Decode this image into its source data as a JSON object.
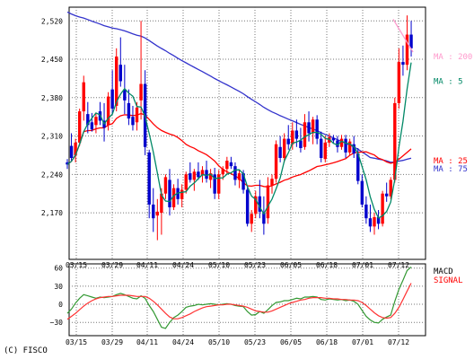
{
  "chart_data": [
    {
      "type": "candlestick",
      "x_ticks": [
        "03/15",
        "03/29",
        "04/11",
        "04/24",
        "05/10",
        "05/23",
        "06/05",
        "06/18",
        "07/01",
        "07/12"
      ],
      "y_ticks": [
        2170,
        2240,
        2310,
        2380,
        2450,
        2520
      ],
      "y_tick_labels": [
        "2,170",
        "2,240",
        "2,310",
        "2,380",
        "2,450",
        "2,520"
      ],
      "ylim": [
        2085,
        2545
      ],
      "grid": true,
      "up_color": "#ff0000",
      "down_color": "#0000cc",
      "candles": [
        [
          2262,
          2268,
          2250,
          2258
        ],
        [
          2292,
          2315,
          2265,
          2270
        ],
        [
          2275,
          2305,
          2262,
          2298
        ],
        [
          2298,
          2360,
          2292,
          2355
        ],
        [
          2355,
          2420,
          2338,
          2408
        ],
        [
          2350,
          2372,
          2315,
          2330
        ],
        [
          2335,
          2352,
          2318,
          2322
        ],
        [
          2330,
          2352,
          2315,
          2345
        ],
        [
          2355,
          2372,
          2330,
          2338
        ],
        [
          2338,
          2370,
          2300,
          2325
        ],
        [
          2330,
          2390,
          2320,
          2382
        ],
        [
          2395,
          2430,
          2350,
          2360
        ],
        [
          2365,
          2470,
          2355,
          2455
        ],
        [
          2440,
          2490,
          2400,
          2410
        ],
        [
          2395,
          2440,
          2350,
          2375
        ],
        [
          2370,
          2395,
          2330,
          2342
        ],
        [
          2345,
          2365,
          2320,
          2330
        ],
        [
          2335,
          2372,
          2320,
          2362
        ],
        [
          2375,
          2520,
          2340,
          2405
        ],
        [
          2405,
          2430,
          2275,
          2290
        ],
        [
          2280,
          2285,
          2160,
          2185
        ],
        [
          2185,
          2215,
          2135,
          2160
        ],
        [
          2165,
          2195,
          2120,
          2172
        ],
        [
          2170,
          2215,
          2130,
          2205
        ],
        [
          2205,
          2240,
          2195,
          2235
        ],
        [
          2230,
          2250,
          2165,
          2180
        ],
        [
          2180,
          2222,
          2175,
          2215
        ],
        [
          2215,
          2232,
          2185,
          2195
        ],
        [
          2195,
          2222,
          2180,
          2212
        ],
        [
          2212,
          2245,
          2205,
          2240
        ],
        [
          2242,
          2262,
          2225,
          2230
        ],
        [
          2230,
          2250,
          2210,
          2245
        ],
        [
          2245,
          2262,
          2230,
          2235
        ],
        [
          2238,
          2255,
          2225,
          2248
        ],
        [
          2248,
          2265,
          2225,
          2232
        ],
        [
          2230,
          2250,
          2215,
          2242
        ],
        [
          2240,
          2252,
          2195,
          2205
        ],
        [
          2205,
          2248,
          2195,
          2240
        ],
        [
          2240,
          2255,
          2230,
          2250
        ],
        [
          2250,
          2272,
          2240,
          2265
        ],
        [
          2262,
          2272,
          2250,
          2255
        ],
        [
          2255,
          2262,
          2220,
          2230
        ],
        [
          2230,
          2248,
          2215,
          2242
        ],
        [
          2242,
          2248,
          2205,
          2212
        ],
        [
          2212,
          2220,
          2145,
          2150
        ],
        [
          2150,
          2175,
          2135,
          2168
        ],
        [
          2168,
          2210,
          2160,
          2200
        ],
        [
          2200,
          2230,
          2160,
          2172
        ],
        [
          2170,
          2200,
          2130,
          2150
        ],
        [
          2160,
          2235,
          2150,
          2220
        ],
        [
          2220,
          2240,
          2205,
          2232
        ],
        [
          2232,
          2302,
          2225,
          2295
        ],
        [
          2290,
          2310,
          2262,
          2270
        ],
        [
          2270,
          2315,
          2262,
          2305
        ],
        [
          2305,
          2330,
          2285,
          2295
        ],
        [
          2295,
          2335,
          2285,
          2320
        ],
        [
          2320,
          2340,
          2290,
          2305
        ],
        [
          2302,
          2325,
          2280,
          2288
        ],
        [
          2290,
          2350,
          2285,
          2335
        ],
        [
          2335,
          2355,
          2300,
          2315
        ],
        [
          2315,
          2345,
          2295,
          2340
        ],
        [
          2340,
          2348,
          2295,
          2305
        ],
        [
          2305,
          2318,
          2262,
          2270
        ],
        [
          2268,
          2310,
          2262,
          2298
        ],
        [
          2298,
          2315,
          2290,
          2308
        ],
        [
          2306,
          2312,
          2296,
          2302
        ],
        [
          2302,
          2310,
          2280,
          2290
        ],
        [
          2290,
          2312,
          2285,
          2305
        ],
        [
          2305,
          2312,
          2270,
          2280
        ],
        [
          2280,
          2305,
          2275,
          2300
        ],
        [
          2295,
          2310,
          2270,
          2278
        ],
        [
          2278,
          2288,
          2222,
          2228
        ],
        [
          2228,
          2240,
          2180,
          2185
        ],
        [
          2185,
          2200,
          2150,
          2160
        ],
        [
          2160,
          2185,
          2135,
          2145
        ],
        [
          2145,
          2170,
          2130,
          2162
        ],
        [
          2162,
          2175,
          2140,
          2150
        ],
        [
          2150,
          2210,
          2145,
          2205
        ],
        [
          2205,
          2225,
          2190,
          2200
        ],
        [
          2200,
          2235,
          2195,
          2230
        ],
        [
          2230,
          2380,
          2225,
          2370
        ],
        [
          2370,
          2470,
          2360,
          2445
        ],
        [
          2445,
          2475,
          2420,
          2440
        ],
        [
          2440,
          2530,
          2430,
          2495
        ],
        [
          2495,
          2520,
          2455,
          2470
        ]
      ],
      "series": [
        {
          "name": "MA : 200",
          "color": "#ff99cc",
          "segment": [
            [
              2.75,
              2523
            ],
            [
              4.95,
              2463
            ]
          ]
        },
        {
          "name": "MA : 5",
          "color": "#008866"
        },
        {
          "name": "MA : 25",
          "color": "#ff0000"
        },
        {
          "name": "MA : 75",
          "color": "#3333cc"
        }
      ],
      "ma_labels": [
        {
          "text": "MA : 200",
          "color": "#ff99cc",
          "value": 2455
        },
        {
          "text": "MA : 5",
          "color": "#008866",
          "value": 2410
        },
        {
          "text": "MA : 25",
          "color": "#ff0000",
          "value": 2265
        },
        {
          "text": "MA : 75",
          "color": "#3333cc",
          "value": 2250
        }
      ]
    },
    {
      "type": "line",
      "x_ticks": [
        "03/15",
        "03/29",
        "04/11",
        "04/24",
        "05/10",
        "05/23",
        "06/05",
        "06/18",
        "07/01",
        "07/12"
      ],
      "y_ticks": [
        60,
        30,
        0,
        -30
      ],
      "y_tick_labels": [
        "60",
        "30",
        "0",
        "−30"
      ],
      "ylim": [
        -52,
        67
      ],
      "grid": true,
      "series": [
        {
          "name": "MACD",
          "color": "#339933",
          "values": [
            -15,
            -8,
            2,
            10,
            16,
            14,
            12,
            10,
            12,
            11,
            12,
            13,
            16,
            18,
            16,
            13,
            10,
            9,
            14,
            10,
            -2,
            -12,
            -25,
            -38,
            -40,
            -30,
            -22,
            -18,
            -12,
            -5,
            -3,
            -2,
            0,
            -1,
            0,
            1,
            0,
            -1,
            0,
            1,
            0,
            -2,
            -3,
            -4,
            -12,
            -18,
            -17,
            -12,
            -15,
            -9,
            -2,
            3,
            4,
            6,
            6,
            8,
            10,
            9,
            12,
            12,
            13,
            12,
            8,
            7,
            9,
            8,
            7,
            8,
            6,
            7,
            5,
            0,
            -10,
            -20,
            -26,
            -30,
            -31,
            -25,
            -21,
            -18,
            5,
            25,
            40,
            56,
            62
          ]
        },
        {
          "name": "SIGNAL",
          "color": "#ff3333",
          "values": [
            -25,
            -20,
            -15,
            -9,
            -3,
            2,
            6,
            9,
            11,
            12,
            13,
            13,
            14,
            15,
            15,
            15,
            14,
            13,
            13,
            13,
            10,
            5,
            -1,
            -8,
            -15,
            -21,
            -24,
            -24,
            -22,
            -19,
            -16,
            -12,
            -9,
            -6,
            -4,
            -3,
            -2,
            -1,
            -1,
            0,
            0,
            -1,
            -2,
            -3,
            -5,
            -8,
            -11,
            -12,
            -13,
            -13,
            -11,
            -8,
            -5,
            -2,
            1,
            3,
            5,
            7,
            8,
            10,
            11,
            11,
            11,
            10,
            10,
            9,
            9,
            8,
            8,
            7,
            7,
            6,
            3,
            -2,
            -8,
            -14,
            -19,
            -22,
            -23,
            -22,
            -15,
            -5,
            8,
            22,
            35
          ]
        }
      ],
      "legend": [
        {
          "text": "MACD",
          "color": "#000000"
        },
        {
          "text": "SIGNAL",
          "color": "#ff0000"
        }
      ]
    }
  ],
  "footer": {
    "copyright": "(C) FISCO"
  }
}
